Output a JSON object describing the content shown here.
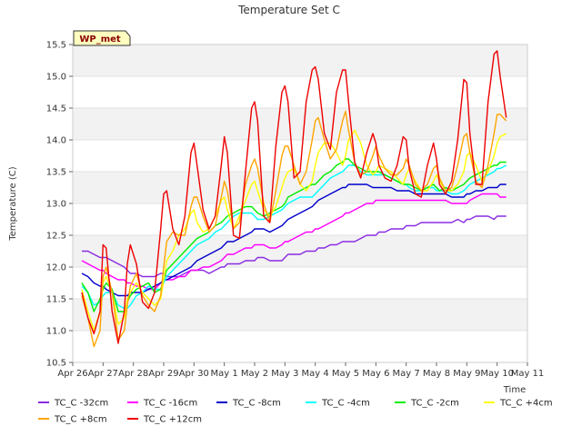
{
  "chart_data": {
    "type": "line",
    "title": "Temperature Set C",
    "xlabel": "Time",
    "ylabel": "Temperature (C)",
    "ylim": [
      10.5,
      15.5
    ],
    "yticks": [
      10.5,
      11.0,
      11.5,
      12.0,
      12.5,
      13.0,
      13.5,
      14.0,
      14.5,
      15.0,
      15.5
    ],
    "ytick_labels": [
      "10.5",
      "11.0",
      "11.5",
      "12.0",
      "12.5",
      "13.0",
      "13.5",
      "14.0",
      "14.5",
      "15.0",
      "15.5"
    ],
    "x_range_days": [
      0,
      15
    ],
    "xticks": [
      0,
      1,
      2,
      3,
      4,
      5,
      6,
      7,
      8,
      9,
      10,
      11,
      12,
      13,
      14,
      15
    ],
    "xtick_labels": [
      "Apr 26",
      "Apr 27",
      "Apr 28",
      "Apr 29",
      "Apr 30",
      "May 1",
      "May 2",
      "May 3",
      "May 4",
      "May 5",
      "May 6",
      "May 7",
      "May 8",
      "May 9",
      "May 10",
      "May 11"
    ],
    "annotation": "WP_met",
    "grid": "horizontal bands",
    "legend_position": "bottom",
    "x": [
      0.3,
      0.5,
      0.7,
      0.9,
      1.0,
      1.1,
      1.3,
      1.5,
      1.7,
      1.8,
      1.9,
      2.1,
      2.3,
      2.5,
      2.7,
      2.9,
      3.0,
      3.1,
      3.3,
      3.5,
      3.7,
      3.9,
      4.0,
      4.1,
      4.3,
      4.5,
      4.7,
      4.9,
      5.0,
      5.1,
      5.3,
      5.5,
      5.7,
      5.9,
      6.0,
      6.1,
      6.3,
      6.5,
      6.7,
      6.9,
      7.0,
      7.1,
      7.3,
      7.5,
      7.7,
      7.9,
      8.0,
      8.1,
      8.3,
      8.5,
      8.7,
      8.9,
      9.0,
      9.1,
      9.3,
      9.5,
      9.7,
      9.9,
      10.0,
      10.1,
      10.3,
      10.5,
      10.7,
      10.9,
      11.0,
      11.1,
      11.3,
      11.5,
      11.7,
      11.9,
      12.0,
      12.1,
      12.3,
      12.5,
      12.7,
      12.9,
      13.0,
      13.1,
      13.3,
      13.5,
      13.7,
      13.9,
      14.0,
      14.1,
      14.3
    ],
    "series": [
      {
        "name": "TC_C -32cm",
        "color": "#8a2be2",
        "values": [
          12.25,
          12.25,
          12.2,
          12.15,
          12.15,
          12.15,
          12.1,
          12.05,
          12.0,
          11.95,
          11.9,
          11.9,
          11.85,
          11.85,
          11.85,
          11.9,
          11.9,
          11.85,
          11.85,
          11.85,
          11.9,
          11.95,
          11.95,
          11.95,
          11.95,
          11.9,
          11.95,
          12.0,
          12.0,
          12.05,
          12.05,
          12.05,
          12.1,
          12.1,
          12.1,
          12.15,
          12.15,
          12.1,
          12.1,
          12.1,
          12.15,
          12.2,
          12.2,
          12.2,
          12.25,
          12.25,
          12.25,
          12.3,
          12.3,
          12.35,
          12.35,
          12.4,
          12.4,
          12.4,
          12.4,
          12.45,
          12.5,
          12.5,
          12.5,
          12.55,
          12.55,
          12.6,
          12.6,
          12.6,
          12.65,
          12.65,
          12.65,
          12.7,
          12.7,
          12.7,
          12.7,
          12.7,
          12.7,
          12.7,
          12.75,
          12.7,
          12.75,
          12.75,
          12.8,
          12.8,
          12.8,
          12.75,
          12.8,
          12.8,
          12.8
        ]
      },
      {
        "name": "TC_C -16cm",
        "color": "#ff00ff",
        "values": [
          12.1,
          12.05,
          12.0,
          11.95,
          11.95,
          11.9,
          11.85,
          11.8,
          11.8,
          11.75,
          11.75,
          11.7,
          11.7,
          11.65,
          11.65,
          11.75,
          11.8,
          11.8,
          11.8,
          11.85,
          11.85,
          11.95,
          11.95,
          11.95,
          12.0,
          12.0,
          12.05,
          12.1,
          12.15,
          12.2,
          12.2,
          12.25,
          12.3,
          12.3,
          12.35,
          12.35,
          12.35,
          12.3,
          12.3,
          12.35,
          12.4,
          12.4,
          12.45,
          12.5,
          12.55,
          12.55,
          12.6,
          12.6,
          12.65,
          12.7,
          12.75,
          12.8,
          12.85,
          12.85,
          12.9,
          12.95,
          13.0,
          13.0,
          13.05,
          13.05,
          13.05,
          13.05,
          13.05,
          13.05,
          13.05,
          13.05,
          13.05,
          13.05,
          13.05,
          13.05,
          13.05,
          13.05,
          13.05,
          13.0,
          13.0,
          13.0,
          13.0,
          13.05,
          13.1,
          13.15,
          13.15,
          13.15,
          13.15,
          13.1,
          13.1
        ]
      },
      {
        "name": "TC_C -8cm",
        "color": "#0000cc",
        "values": [
          11.9,
          11.85,
          11.75,
          11.7,
          11.7,
          11.65,
          11.6,
          11.55,
          11.55,
          11.55,
          11.6,
          11.6,
          11.6,
          11.65,
          11.7,
          11.75,
          11.8,
          11.8,
          11.85,
          11.9,
          11.95,
          12.0,
          12.05,
          12.1,
          12.15,
          12.2,
          12.25,
          12.3,
          12.35,
          12.4,
          12.4,
          12.45,
          12.5,
          12.55,
          12.6,
          12.6,
          12.6,
          12.55,
          12.6,
          12.65,
          12.7,
          12.75,
          12.8,
          12.85,
          12.9,
          12.95,
          13.0,
          13.05,
          13.1,
          13.15,
          13.2,
          13.25,
          13.25,
          13.3,
          13.3,
          13.3,
          13.3,
          13.25,
          13.25,
          13.25,
          13.25,
          13.25,
          13.2,
          13.2,
          13.2,
          13.2,
          13.15,
          13.15,
          13.15,
          13.15,
          13.15,
          13.15,
          13.15,
          13.1,
          13.1,
          13.1,
          13.15,
          13.15,
          13.2,
          13.2,
          13.25,
          13.25,
          13.25,
          13.3,
          13.3
        ]
      },
      {
        "name": "TC_C -4cm",
        "color": "#00ffff",
        "values": [
          11.7,
          11.6,
          11.4,
          11.45,
          11.55,
          11.6,
          11.6,
          11.4,
          11.35,
          11.35,
          11.4,
          11.55,
          11.6,
          11.7,
          11.65,
          11.65,
          11.75,
          11.85,
          11.95,
          12.05,
          12.15,
          12.25,
          12.3,
          12.35,
          12.4,
          12.45,
          12.55,
          12.6,
          12.65,
          12.7,
          12.8,
          12.85,
          12.85,
          12.85,
          12.8,
          12.75,
          12.75,
          12.8,
          12.85,
          12.9,
          12.95,
          13.0,
          13.05,
          13.1,
          13.1,
          13.1,
          13.15,
          13.2,
          13.3,
          13.4,
          13.45,
          13.5,
          13.55,
          13.6,
          13.6,
          13.5,
          13.45,
          13.45,
          13.45,
          13.45,
          13.45,
          13.4,
          13.35,
          13.3,
          13.3,
          13.25,
          13.2,
          13.2,
          13.25,
          13.25,
          13.2,
          13.2,
          13.2,
          13.15,
          13.15,
          13.2,
          13.25,
          13.3,
          13.35,
          13.4,
          13.45,
          13.5,
          13.55,
          13.55,
          13.6
        ]
      },
      {
        "name": "TC_C -2cm",
        "color": "#00ee00",
        "values": [
          11.75,
          11.6,
          11.3,
          11.5,
          11.65,
          11.75,
          11.65,
          11.3,
          11.3,
          11.45,
          11.55,
          11.65,
          11.7,
          11.75,
          11.6,
          11.65,
          11.8,
          11.95,
          12.05,
          12.15,
          12.25,
          12.35,
          12.4,
          12.45,
          12.5,
          12.55,
          12.65,
          12.7,
          12.75,
          12.8,
          12.85,
          12.9,
          12.95,
          12.95,
          12.9,
          12.85,
          12.8,
          12.85,
          12.9,
          12.95,
          13.0,
          13.1,
          13.15,
          13.2,
          13.25,
          13.3,
          13.3,
          13.35,
          13.45,
          13.5,
          13.6,
          13.65,
          13.7,
          13.7,
          13.6,
          13.55,
          13.5,
          13.5,
          13.5,
          13.5,
          13.45,
          13.4,
          13.35,
          13.3,
          13.3,
          13.3,
          13.25,
          13.2,
          13.25,
          13.3,
          13.25,
          13.2,
          13.25,
          13.2,
          13.25,
          13.3,
          13.35,
          13.4,
          13.45,
          13.5,
          13.55,
          13.6,
          13.6,
          13.65,
          13.65
        ]
      },
      {
        "name": "TC_C +4cm",
        "color": "#ffff00",
        "values": [
          11.65,
          11.3,
          11.0,
          11.3,
          11.75,
          11.85,
          11.6,
          11.1,
          11.2,
          11.5,
          11.6,
          11.75,
          11.6,
          11.5,
          11.4,
          11.5,
          11.8,
          12.1,
          12.25,
          12.5,
          12.6,
          12.85,
          12.9,
          12.7,
          12.55,
          12.6,
          12.8,
          13.05,
          13.1,
          12.9,
          12.6,
          12.8,
          13.05,
          13.3,
          13.35,
          13.2,
          12.9,
          12.8,
          12.95,
          13.25,
          13.4,
          13.5,
          13.55,
          13.3,
          13.2,
          13.35,
          13.6,
          13.8,
          13.95,
          13.95,
          13.8,
          13.6,
          13.75,
          14.0,
          14.15,
          13.95,
          13.6,
          13.45,
          13.5,
          13.6,
          13.55,
          13.5,
          13.4,
          13.3,
          13.45,
          13.55,
          13.35,
          13.2,
          13.2,
          13.35,
          13.45,
          13.35,
          13.2,
          13.2,
          13.3,
          13.5,
          13.75,
          13.8,
          13.6,
          13.35,
          13.5,
          13.75,
          13.95,
          14.05,
          14.1
        ]
      },
      {
        "name": "TC_C +8cm",
        "color": "#ffa500",
        "values": [
          11.55,
          11.2,
          10.75,
          11.0,
          11.85,
          12.0,
          11.6,
          10.85,
          11.0,
          11.4,
          11.7,
          11.9,
          11.55,
          11.4,
          11.3,
          11.55,
          12.0,
          12.4,
          12.55,
          12.5,
          12.5,
          12.95,
          13.1,
          13.1,
          12.8,
          12.55,
          12.65,
          13.1,
          13.35,
          13.2,
          12.6,
          12.7,
          13.3,
          13.6,
          13.7,
          13.55,
          13.0,
          12.7,
          13.2,
          13.75,
          13.9,
          13.9,
          13.6,
          13.3,
          13.5,
          14.0,
          14.3,
          14.35,
          14.0,
          13.7,
          13.85,
          14.3,
          14.45,
          14.15,
          13.65,
          13.45,
          13.5,
          13.75,
          13.9,
          13.75,
          13.55,
          13.45,
          13.45,
          13.55,
          13.7,
          13.6,
          13.3,
          13.2,
          13.3,
          13.55,
          13.6,
          13.4,
          13.2,
          13.25,
          13.6,
          14.05,
          14.1,
          13.8,
          13.35,
          13.25,
          13.6,
          14.1,
          14.4,
          14.4,
          14.3
        ]
      },
      {
        "name": "TC_C +12cm",
        "color": "#ee0000",
        "values": [
          11.6,
          11.2,
          10.95,
          11.3,
          12.35,
          12.3,
          11.3,
          10.8,
          11.3,
          12.05,
          12.35,
          12.05,
          11.45,
          11.35,
          11.6,
          12.6,
          13.15,
          13.2,
          12.6,
          12.35,
          12.8,
          13.8,
          13.95,
          13.6,
          12.9,
          12.6,
          12.8,
          13.6,
          14.05,
          13.8,
          12.5,
          12.45,
          13.5,
          14.5,
          14.6,
          14.3,
          12.8,
          12.7,
          13.9,
          14.75,
          14.85,
          14.6,
          13.4,
          13.5,
          14.6,
          15.1,
          15.15,
          14.95,
          14.1,
          13.85,
          14.75,
          15.1,
          15.1,
          14.6,
          13.65,
          13.4,
          13.8,
          14.1,
          13.95,
          13.6,
          13.4,
          13.35,
          13.6,
          14.05,
          14.0,
          13.55,
          13.15,
          13.1,
          13.6,
          13.95,
          13.7,
          13.3,
          13.15,
          13.35,
          14.0,
          14.95,
          14.9,
          14.1,
          13.3,
          13.3,
          14.6,
          15.35,
          15.4,
          15.0,
          14.35
        ]
      }
    ]
  }
}
